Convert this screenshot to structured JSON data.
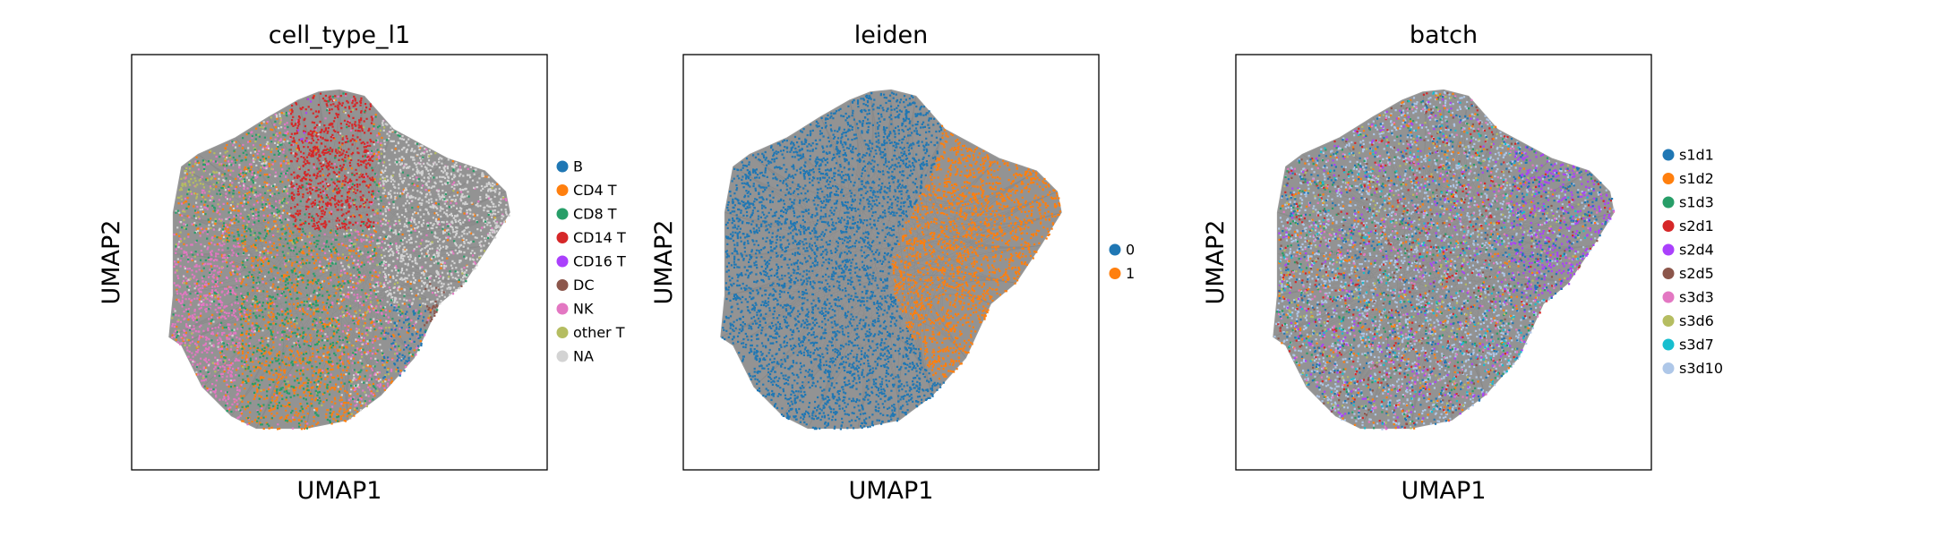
{
  "chart_data": [
    {
      "type": "scatter",
      "title": "cell_type_l1",
      "xlabel": "UMAP1",
      "ylabel": "UMAP2",
      "grid": false,
      "legend_placement": "right",
      "legend": [
        {
          "label": "B",
          "color": "#1f77b4"
        },
        {
          "label": "CD4 T",
          "color": "#ff7f0e"
        },
        {
          "label": "CD8 T",
          "color": "#279e68"
        },
        {
          "label": "CD14 T",
          "color": "#d62728"
        },
        {
          "label": "CD16 T",
          "color": "#aa40fc"
        },
        {
          "label": "DC",
          "color": "#8c564b"
        },
        {
          "label": "NK",
          "color": "#e377c2"
        },
        {
          "label": "other T",
          "color": "#b5bd61"
        },
        {
          "label": "NA",
          "color": "#d3d3d3"
        }
      ],
      "background_edge_color": "#808080"
    },
    {
      "type": "scatter",
      "title": "leiden",
      "xlabel": "UMAP1",
      "ylabel": "UMAP2",
      "grid": false,
      "legend_placement": "right",
      "legend": [
        {
          "label": "0",
          "color": "#1f77b4"
        },
        {
          "label": "1",
          "color": "#ff7f0e"
        }
      ],
      "background_edge_color": "#808080"
    },
    {
      "type": "scatter",
      "title": "batch",
      "xlabel": "UMAP1",
      "ylabel": "UMAP2",
      "grid": false,
      "legend_placement": "right",
      "legend": [
        {
          "label": "s1d1",
          "color": "#1f77b4"
        },
        {
          "label": "s1d2",
          "color": "#ff7f0e"
        },
        {
          "label": "s1d3",
          "color": "#279e68"
        },
        {
          "label": "s2d1",
          "color": "#d62728"
        },
        {
          "label": "s2d4",
          "color": "#aa40fc"
        },
        {
          "label": "s2d5",
          "color": "#8c564b"
        },
        {
          "label": "s3d3",
          "color": "#e377c2"
        },
        {
          "label": "s3d6",
          "color": "#b5bd61"
        },
        {
          "label": "s3d7",
          "color": "#17becf"
        },
        {
          "label": "s3d10",
          "color": "#aec7e8"
        }
      ],
      "background_edge_color": "#808080"
    }
  ]
}
